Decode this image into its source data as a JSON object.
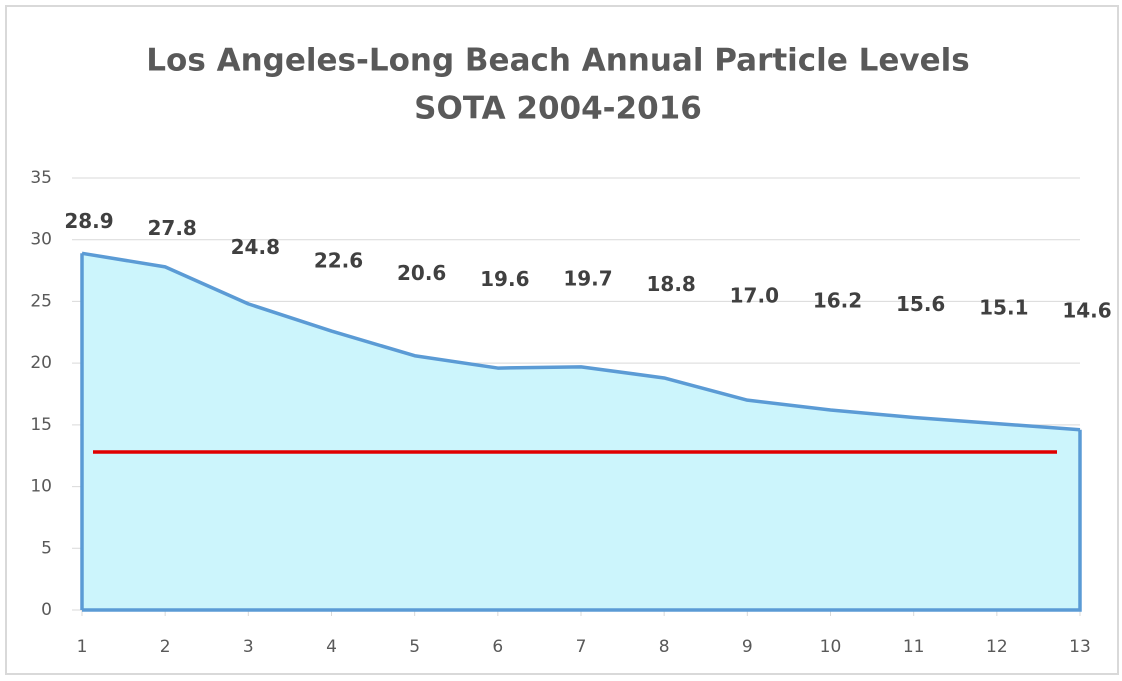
{
  "chart_data": {
    "type": "area",
    "title": "Los Angeles-Long Beach Annual Particle Levels",
    "subtitle": "SOTA 2004-2016",
    "x": [
      1,
      2,
      3,
      4,
      5,
      6,
      7,
      8,
      9,
      10,
      11,
      12,
      13
    ],
    "values": [
      28.9,
      27.8,
      24.8,
      22.6,
      20.6,
      19.6,
      19.7,
      18.8,
      17.0,
      16.2,
      15.6,
      15.1,
      14.6
    ],
    "value_labels": [
      "28.9",
      "27.8",
      "24.8",
      "22.6",
      "20.6",
      "19.6",
      "19.7",
      "18.8",
      "17.0",
      "16.2",
      "15.6",
      "15.1",
      "14.6"
    ],
    "color": "#5b9bd5",
    "fill": "#ccf5fc",
    "xlim": [
      1,
      13
    ],
    "xticks": [
      1,
      2,
      3,
      4,
      5,
      6,
      7,
      8,
      9,
      10,
      11,
      12,
      13
    ],
    "ylim": [
      0,
      35
    ],
    "yticks": [
      0,
      5,
      10,
      15,
      20,
      25,
      30,
      35
    ],
    "grid": true,
    "reference_line": {
      "value": 12.8,
      "color": "#e00000"
    }
  }
}
